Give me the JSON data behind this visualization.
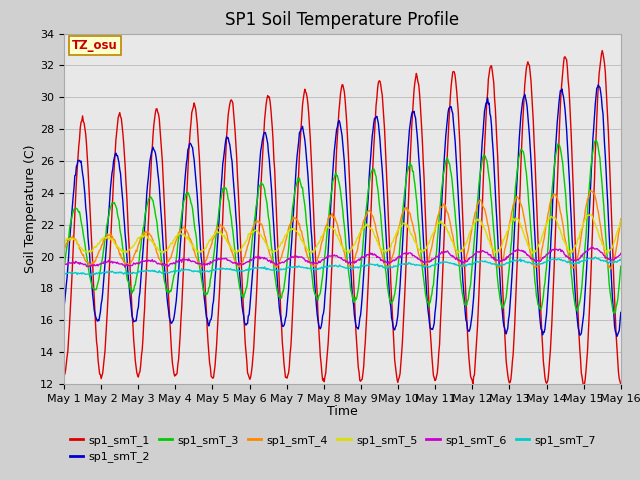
{
  "title": "SP1 Soil Temperature Profile",
  "xlabel": "Time",
  "ylabel": "Soil Temperature (C)",
  "ylim": [
    12,
    34
  ],
  "xlim": [
    0,
    15
  ],
  "xtick_labels": [
    "May 1",
    "May 2",
    "May 3",
    "May 4",
    "May 5",
    "May 6",
    "May 7",
    "May 8",
    "May 9",
    "May 10",
    "May 11",
    "May 12",
    "May 13",
    "May 14",
    "May 15",
    "May 16"
  ],
  "ytick_values": [
    12,
    14,
    16,
    18,
    20,
    22,
    24,
    26,
    28,
    30,
    32,
    34
  ],
  "annotation_text": "TZ_osu",
  "annotation_color": "#cc0000",
  "annotation_bg": "#ffffcc",
  "annotation_border": "#bb8800",
  "series_colors": {
    "sp1_smT_1": "#dd0000",
    "sp1_smT_2": "#0000cc",
    "sp1_smT_3": "#00cc00",
    "sp1_smT_4": "#ff8800",
    "sp1_smT_5": "#dddd00",
    "sp1_smT_6": "#cc00cc",
    "sp1_smT_7": "#00cccc"
  },
  "fig_facecolor": "#d0d0d0",
  "axes_facecolor": "#e8e8e8",
  "grid_color": "#c0c0c0",
  "legend_fontsize": 8,
  "title_fontsize": 12,
  "axis_fontsize": 8,
  "label_fontsize": 9
}
